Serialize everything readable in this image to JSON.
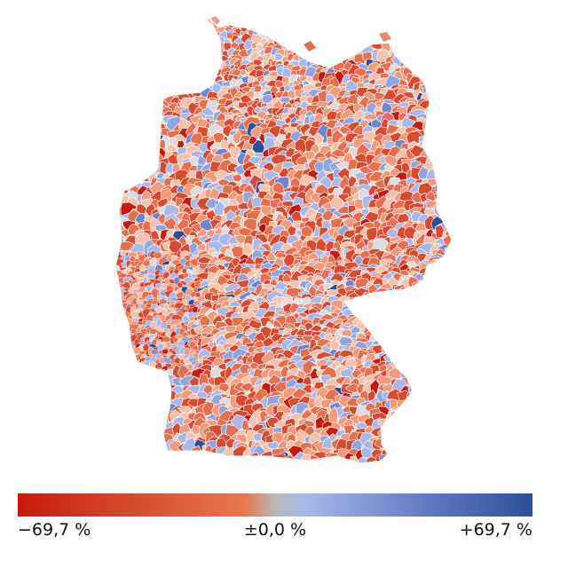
{
  "map": {
    "region": "Germany",
    "fill_style": "diverging choropleth of many small municipalities with thin white borders",
    "colors": {
      "negative_extreme": "#c81a0f",
      "negative_mid": "#e66f50",
      "neutral": "#b8b8b8",
      "positive_mid": "#a8b8e8",
      "positive_extreme": "#2c4f99",
      "border": "#ffffff"
    }
  },
  "legend": {
    "min_label": "−69,7 %",
    "mid_label": "±0,0 %",
    "max_label": "+69,7 %",
    "min_value": -69.7,
    "mid_value": 0.0,
    "max_value": 69.7
  }
}
